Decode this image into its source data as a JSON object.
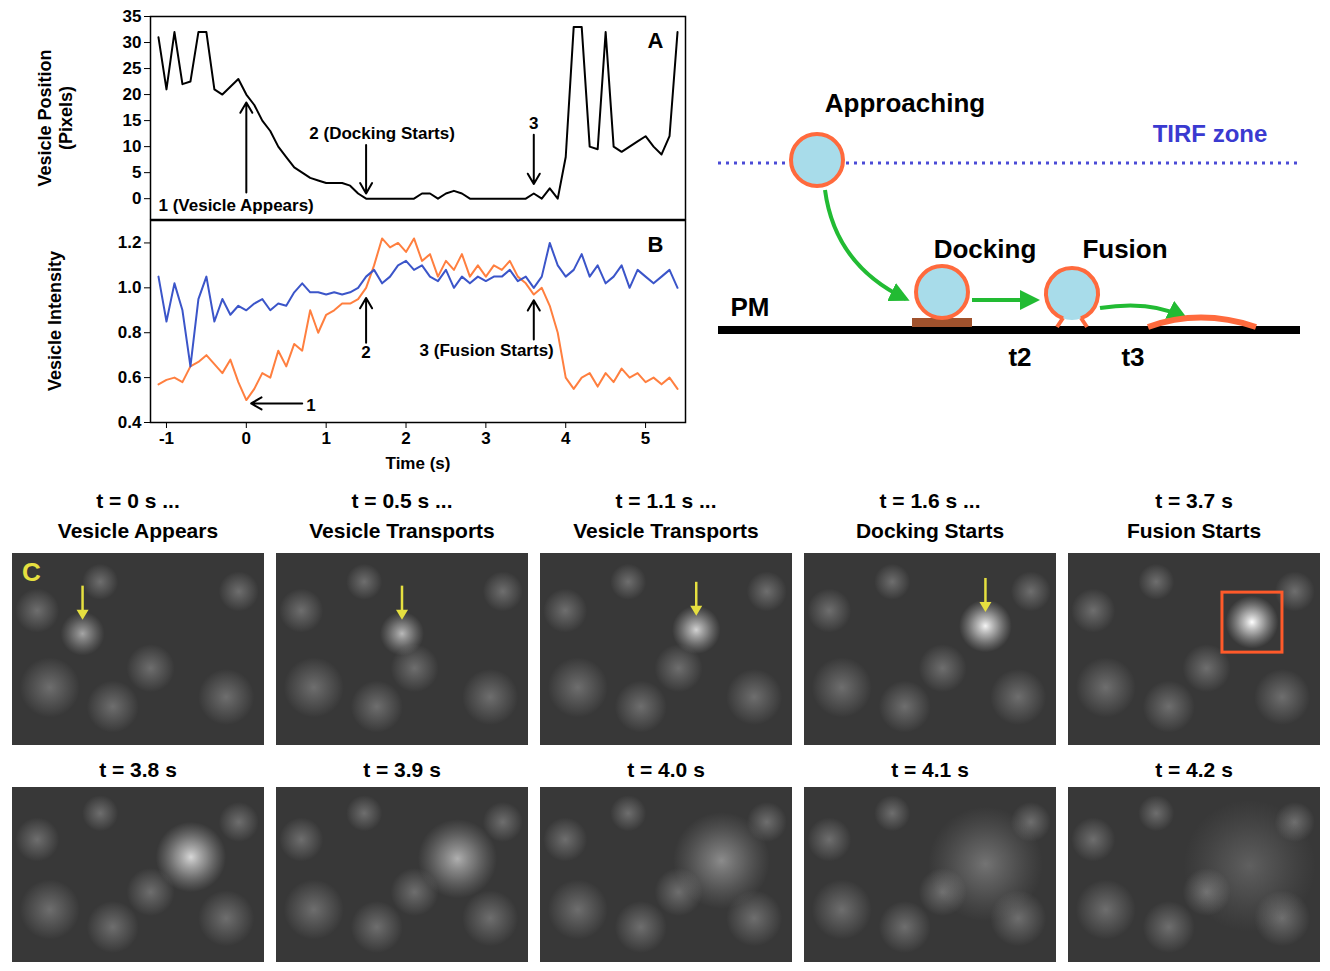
{
  "chart_data": [
    {
      "type": "line",
      "panel": "A",
      "y_label": "Vesicle Position (Pixels)",
      "x": [
        -1.1,
        -1,
        -0.9,
        -0.8,
        -0.7,
        -0.6,
        -0.5,
        -0.4,
        -0.3,
        -0.2,
        -0.1,
        0,
        0.1,
        0.2,
        0.3,
        0.4,
        0.5,
        0.6,
        0.7,
        0.8,
        0.9,
        1,
        1.1,
        1.2,
        1.3,
        1.4,
        1.5,
        1.6,
        1.7,
        1.8,
        1.9,
        2,
        2.1,
        2.2,
        2.3,
        2.4,
        2.5,
        2.6,
        2.7,
        2.8,
        2.9,
        3,
        3.1,
        3.2,
        3.3,
        3.4,
        3.5,
        3.6,
        3.7,
        3.8,
        3.9,
        4,
        4.1,
        4.2,
        4.3,
        4.4,
        4.5,
        4.6,
        4.7,
        4.8,
        4.9,
        5,
        5.1,
        5.2,
        5.3,
        5.4
      ],
      "values": [
        31,
        21,
        32,
        22,
        22.5,
        32,
        32,
        21,
        20,
        21.5,
        23,
        20,
        18,
        15,
        13,
        10,
        8,
        6,
        5,
        4,
        3.5,
        3,
        3,
        3,
        2.5,
        1,
        0,
        0,
        0,
        0,
        0,
        0,
        0,
        1,
        1,
        0,
        1,
        1.5,
        1,
        0,
        0,
        0,
        0,
        0,
        0,
        0,
        0,
        1,
        0,
        2,
        0,
        8,
        33,
        33,
        10,
        9.5,
        32,
        10,
        9,
        10,
        11,
        12,
        10,
        8.5,
        12,
        32
      ],
      "color": "#000000",
      "xlim": [
        -1.2,
        5.5
      ],
      "xticks": [
        -1,
        0,
        1,
        2,
        3,
        4,
        5
      ],
      "ylim": [
        -4,
        35
      ],
      "yticks": [
        0,
        5,
        10,
        15,
        20,
        25,
        30,
        35
      ],
      "tick_labels": "y",
      "annotations": [
        {
          "text": "1 (Vesicle Appears)",
          "x": 0
        },
        {
          "text": "2 (Docking Starts)",
          "x": 1.5
        },
        {
          "text": "3",
          "x": 3.6
        }
      ]
    },
    {
      "type": "line",
      "panel": "B",
      "x_label": "Time (s)",
      "y_label": "Vesicle Intensity",
      "x": [
        -1.1,
        -1,
        -0.9,
        -0.8,
        -0.7,
        -0.6,
        -0.5,
        -0.4,
        -0.3,
        -0.2,
        -0.1,
        0,
        0.1,
        0.2,
        0.3,
        0.4,
        0.5,
        0.6,
        0.7,
        0.8,
        0.9,
        1,
        1.1,
        1.2,
        1.3,
        1.4,
        1.5,
        1.6,
        1.7,
        1.8,
        1.9,
        2,
        2.1,
        2.2,
        2.3,
        2.4,
        2.5,
        2.6,
        2.7,
        2.8,
        2.9,
        3,
        3.1,
        3.2,
        3.3,
        3.4,
        3.5,
        3.6,
        3.7,
        3.8,
        3.9,
        4,
        4.1,
        4.2,
        4.3,
        4.4,
        4.5,
        4.6,
        4.7,
        4.8,
        4.9,
        5,
        5.1,
        5.2,
        5.3,
        5.4
      ],
      "series": [
        {
          "color": "#ff7f3f",
          "values": [
            0.57,
            0.59,
            0.6,
            0.58,
            0.65,
            0.67,
            0.7,
            0.66,
            0.62,
            0.68,
            0.58,
            0.5,
            0.55,
            0.62,
            0.6,
            0.72,
            0.65,
            0.75,
            0.72,
            0.9,
            0.8,
            0.88,
            0.9,
            0.93,
            0.93,
            0.95,
            1.0,
            1.1,
            1.22,
            1.18,
            1.2,
            1.16,
            1.22,
            1.12,
            1.15,
            1.05,
            1.12,
            1.08,
            1.15,
            1.05,
            1.1,
            1.05,
            1.1,
            1.08,
            1.12,
            1.05,
            1.02,
            0.97,
            1.0,
            0.92,
            0.8,
            0.6,
            0.55,
            0.6,
            0.62,
            0.56,
            0.62,
            0.58,
            0.64,
            0.6,
            0.62,
            0.58,
            0.6,
            0.57,
            0.6,
            0.55
          ]
        },
        {
          "color": "#3b55c9",
          "values": [
            1.05,
            0.85,
            1.02,
            0.9,
            0.65,
            0.95,
            1.05,
            0.85,
            0.95,
            0.88,
            0.92,
            0.9,
            0.93,
            0.95,
            0.9,
            0.93,
            0.92,
            0.98,
            1.02,
            0.98,
            0.98,
            0.97,
            0.98,
            0.97,
            0.98,
            1.0,
            1.05,
            1.08,
            1.02,
            1.05,
            1.1,
            1.12,
            1.08,
            1.1,
            1.05,
            1.03,
            1.08,
            1.0,
            1.05,
            1.02,
            1.05,
            1.03,
            1.05,
            1.05,
            1.08,
            1.03,
            1.05,
            1.0,
            1.05,
            1.2,
            1.1,
            1.05,
            1.08,
            1.15,
            1.05,
            1.1,
            1.02,
            1.05,
            1.1,
            1.0,
            1.08,
            1.05,
            1.02,
            1.05,
            1.08,
            1.0
          ]
        }
      ],
      "xlim": [
        -1.2,
        5.5
      ],
      "xticks": [
        -1,
        0,
        1,
        2,
        3,
        4,
        5
      ],
      "ylim": [
        0.4,
        1.3
      ],
      "yticks": [
        0.4,
        0.6,
        0.8,
        {
          "value": 1,
          "label": "1.0"
        },
        1.2
      ],
      "annotations": [
        {
          "text": "1",
          "x": 0
        },
        {
          "text": "2",
          "x": 1.5
        },
        {
          "text": "3 (Fusion Starts)",
          "x": 3.6
        }
      ]
    }
  ],
  "diagram": {
    "approaching": "Approaching",
    "tirf": "TIRF zone",
    "docking": "Docking",
    "fusion": "Fusion",
    "membrane": "PM",
    "times": [
      "t2",
      "t3"
    ]
  },
  "image_panels": {
    "label": "C",
    "tiles": [
      {
        "title": [
          "t = 0 s ...",
          "Vesicle Appears"
        ],
        "marker": "arrow"
      },
      {
        "title": [
          "t = 0.5 s ...",
          "Vesicle Transports"
        ],
        "marker": "arrow"
      },
      {
        "title": [
          "t = 1.1 s ...",
          "Vesicle Transports"
        ],
        "marker": "arrow"
      },
      {
        "title": [
          "t = 1.6 s ...",
          "Docking Starts"
        ],
        "marker": "arrow"
      },
      {
        "title": [
          "t = 3.7 s",
          "Fusion Starts"
        ],
        "marker": "box"
      },
      {
        "title": [
          "t = 3.8 s"
        ]
      },
      {
        "title": [
          "t = 3.9 s"
        ]
      },
      {
        "title": [
          "t = 4.0 s"
        ]
      },
      {
        "title": [
          "t = 4.1 s"
        ]
      },
      {
        "title": [
          "t = 4.2 s"
        ]
      }
    ]
  }
}
